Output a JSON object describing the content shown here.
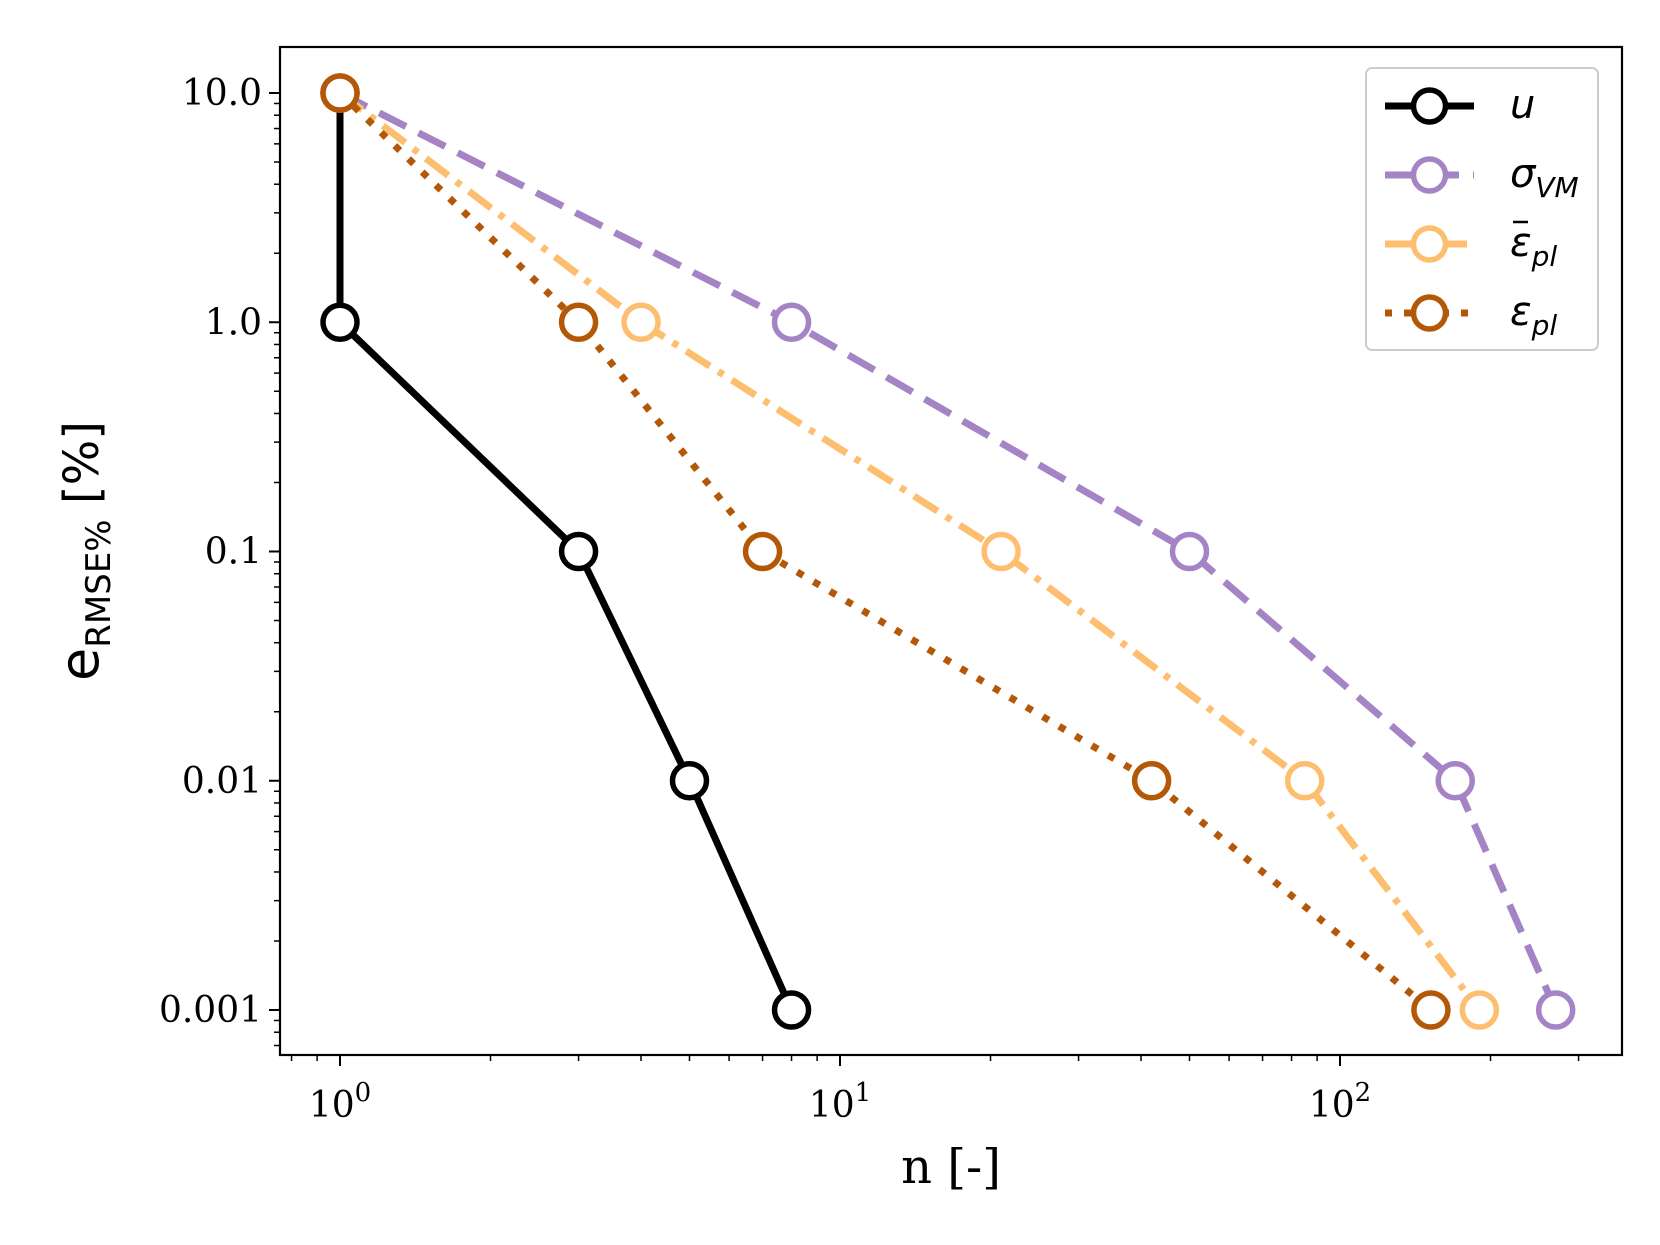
{
  "chart_data": {
    "type": "line",
    "title": "",
    "xscale": "log",
    "yscale": "log",
    "xlim": [
      0.78,
      350
    ],
    "ylim": [
      0.00065,
      16
    ],
    "xlabel": "n [-]",
    "ylabel": {
      "main": "e",
      "sub": "RMSE%",
      "unit": "[%]"
    },
    "x_ticks": [
      {
        "value": 1,
        "base": "10",
        "exp": "0"
      },
      {
        "value": 10,
        "base": "10",
        "exp": "1"
      },
      {
        "value": 100,
        "base": "10",
        "exp": "2"
      }
    ],
    "y_ticks": [
      {
        "value": 10,
        "label": "10.0"
      },
      {
        "value": 1,
        "label": "1.0"
      },
      {
        "value": 0.1,
        "label": "0.1"
      },
      {
        "value": 0.01,
        "label": "0.01"
      },
      {
        "value": 0.001,
        "label": "0.001"
      }
    ],
    "legend_position": "top-right",
    "series": [
      {
        "name": "u",
        "symbol": "u",
        "subscript": "",
        "bar": false,
        "color": "#000000",
        "marker_fill": "#ffffff",
        "dash": "solid",
        "x": [
          1,
          1,
          3,
          5,
          8
        ],
        "y": [
          10,
          1,
          0.1,
          0.01,
          0.001
        ]
      },
      {
        "name": "σ_VM",
        "symbol": "σ",
        "subscript": "VM",
        "bar": false,
        "color": "#a584c6",
        "marker_fill": "#ffffff",
        "dash": "dashed",
        "x": [
          1,
          8,
          50,
          170,
          270
        ],
        "y": [
          10,
          1,
          0.1,
          0.01,
          0.001
        ]
      },
      {
        "name": "ε̄_pl",
        "symbol": "ε",
        "subscript": "pl",
        "bar": true,
        "color": "#fdbf6f",
        "marker_fill": "#ffffff",
        "dash": "dashdot",
        "x": [
          1,
          4,
          21,
          85,
          190
        ],
        "y": [
          10,
          1,
          0.1,
          0.01,
          0.001
        ]
      },
      {
        "name": "ε_pl",
        "symbol": "ε",
        "subscript": "pl",
        "bar": false,
        "color": "#b35806",
        "marker_fill": "#ffffff",
        "dash": "dotted",
        "x": [
          1,
          3,
          7,
          42,
          152
        ],
        "y": [
          10,
          1,
          0.1,
          0.01,
          0.001
        ]
      }
    ]
  }
}
